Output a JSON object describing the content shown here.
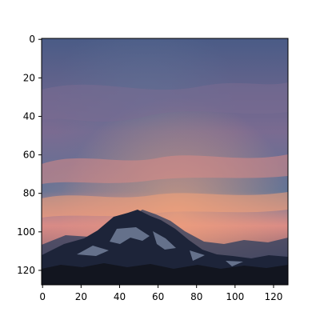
{
  "figure": {
    "background": "#ffffff"
  },
  "image": {
    "subject": "mountain-sunset-sky",
    "colors": {
      "sky_top": "#4a5b86",
      "sky_mid_purple": "#7a6b91",
      "cloud_blue": "#5f7396",
      "glow_pink": "#d98b86",
      "glow_orange": "#f3a37a",
      "mountain_dark": "#1d2439",
      "mountain_mid": "#34415f",
      "snow": "#8c9bb7",
      "foreground": "#12151f"
    }
  },
  "axes": {
    "x_ticks": [
      "0",
      "20",
      "40",
      "60",
      "80",
      "100",
      "120"
    ],
    "y_ticks": [
      "0",
      "20",
      "40",
      "60",
      "80",
      "100",
      "120"
    ],
    "x_range": [
      -0.5,
      127.5
    ],
    "y_range": [
      -0.5,
      127.5
    ],
    "tick_color": "#000000",
    "spine_color": "#000000"
  }
}
